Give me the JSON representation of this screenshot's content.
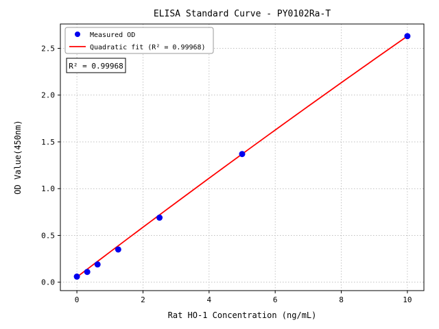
{
  "figure": {
    "background": "#ffffff"
  },
  "chart_data": {
    "type": "scatter",
    "title": "ELISA Standard Curve - PY0102Ra-T",
    "xlabel": "Rat HO-1 Concentration (ng/mL)",
    "ylabel": "OD Value(450nm)",
    "xlim": [
      -0.5,
      10.5
    ],
    "ylim": [
      -0.09,
      2.76
    ],
    "xticks": [
      0,
      2,
      4,
      6,
      8,
      10
    ],
    "yticks": [
      0.0,
      0.5,
      1.0,
      1.5,
      2.0,
      2.5
    ],
    "grid": true,
    "grid_color": "#aaaaaa",
    "series": [
      {
        "name": "Measured OD",
        "kind": "scatter",
        "color": "#0000ee",
        "x": [
          0,
          0.313,
          0.625,
          1.25,
          2.5,
          5,
          10
        ],
        "y": [
          0.06,
          0.11,
          0.19,
          0.35,
          0.69,
          1.37,
          2.63
        ]
      },
      {
        "name": "Quadratic fit (R² = 0.99968)",
        "kind": "line",
        "color": "#ff0000",
        "fit": {
          "a": -0.0011,
          "b": 0.2685,
          "c": 0.055,
          "x_start": 0,
          "x_end": 10
        }
      }
    ],
    "legend": {
      "position": "upper left",
      "entries": [
        "Measured OD",
        "Quadratic fit (R² = 0.99968)"
      ]
    },
    "annotation": "R² = 0.99968"
  }
}
